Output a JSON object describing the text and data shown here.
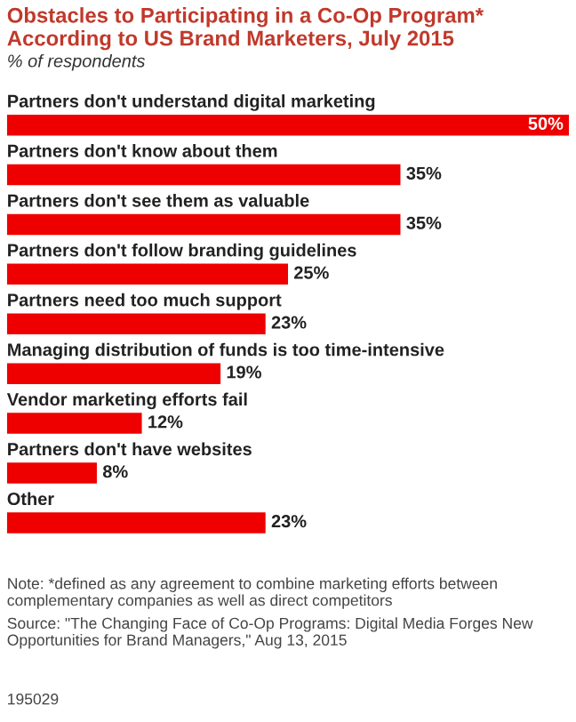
{
  "chart_data": {
    "type": "bar",
    "orientation": "horizontal",
    "title": "Obstacles to Participating in a Co-Op Program* According to US Brand Marketers, July 2015",
    "subtitle": "% of respondents",
    "categories": [
      "Partners don't understand digital marketing",
      "Partners don't know about them",
      "Partners don't see them as valuable",
      "Partners don't follow branding guidelines",
      "Partners need too much support",
      "Managing distribution of funds is too time-intensive",
      "Vendor marketing efforts fail",
      "Partners don't have websites",
      "Other"
    ],
    "values": [
      50,
      35,
      35,
      25,
      23,
      19,
      12,
      8,
      23
    ],
    "value_labels": [
      "50%",
      "35%",
      "35%",
      "25%",
      "23%",
      "19%",
      "12%",
      "8%",
      "23%"
    ],
    "color": "#ee0000",
    "xlim": [
      0,
      50
    ],
    "legend": false,
    "annotations": [
      "Note: *defined as any agreement to combine marketing efforts between complementary companies as well as direct competitors",
      "Source: \"The Changing Face of Co-Op Programs: Digital Media Forges New Opportunities for Brand Managers,\" Aug 13, 2015",
      "195029"
    ]
  }
}
